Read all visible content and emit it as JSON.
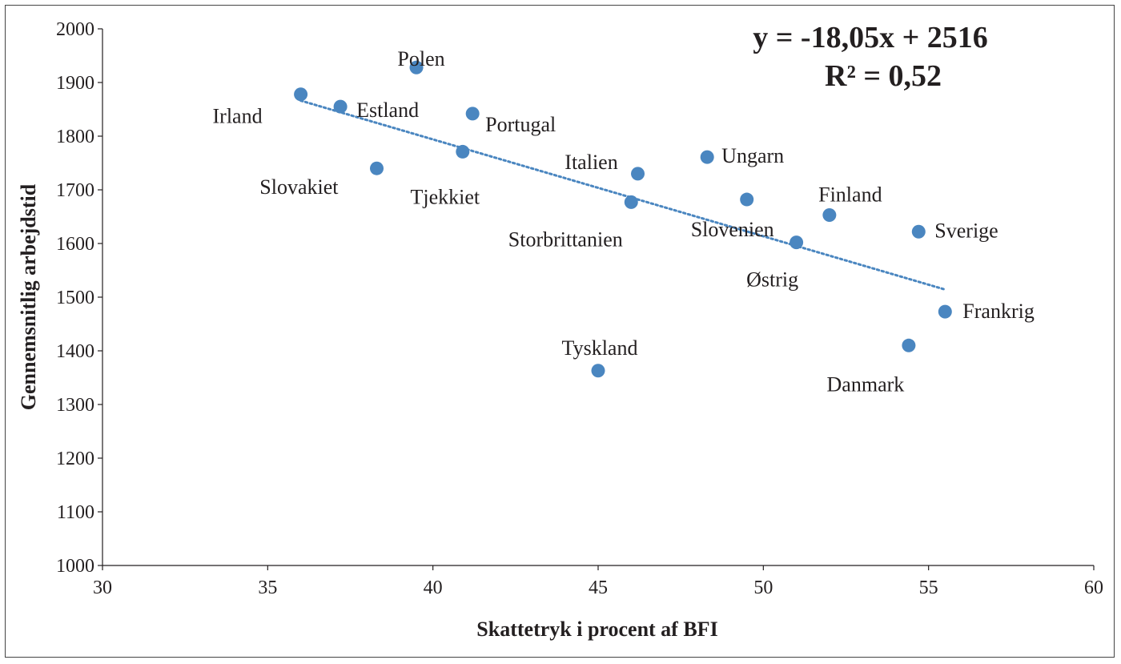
{
  "chart_data": {
    "type": "scatter",
    "title": "",
    "xlabel": "Skattetryk i procent af BFI",
    "ylabel": "Gennemsnitlig arbejdstid",
    "xlim": [
      30,
      60
    ],
    "ylim": [
      1000,
      2000
    ],
    "x_ticks": [
      "30",
      "35",
      "40",
      "45",
      "50",
      "55",
      "60"
    ],
    "y_ticks": [
      "1000",
      "1100",
      "1200",
      "1300",
      "1400",
      "1500",
      "1600",
      "1700",
      "1800",
      "1900",
      "2000"
    ],
    "grid": false,
    "legend": "none",
    "marker_color": "#4a86c0",
    "trend_color": "#4a86c0",
    "trendline": {
      "type": "linear",
      "slope": -18.05,
      "intercept": 2516,
      "x_range": [
        36,
        55.5
      ],
      "equation_label": "y = -18,05x + 2516",
      "r2_label": "R² = 0,52"
    },
    "points": [
      {
        "label": "Irland",
        "x": 36.0,
        "y": 1878
      },
      {
        "label": "Estland",
        "x": 37.2,
        "y": 1855
      },
      {
        "label": "Polen",
        "x": 39.5,
        "y": 1928
      },
      {
        "label": "Slovakiet",
        "x": 38.3,
        "y": 1740
      },
      {
        "label": "Tjekkiet",
        "x": 40.9,
        "y": 1771
      },
      {
        "label": "Portugal",
        "x": 41.2,
        "y": 1842
      },
      {
        "label": "Italien",
        "x": 46.2,
        "y": 1730
      },
      {
        "label": "Storbrittanien",
        "x": 46.0,
        "y": 1677
      },
      {
        "label": "Tyskland",
        "x": 45.0,
        "y": 1363
      },
      {
        "label": "Ungarn",
        "x": 48.3,
        "y": 1761
      },
      {
        "label": "Slovenien",
        "x": 49.5,
        "y": 1682
      },
      {
        "label": "Østrig",
        "x": 51.0,
        "y": 1602
      },
      {
        "label": "Finland",
        "x": 52.0,
        "y": 1653
      },
      {
        "label": "Sverige",
        "x": 54.7,
        "y": 1622
      },
      {
        "label": "Danmark",
        "x": 54.4,
        "y": 1410
      },
      {
        "label": "Frankrig",
        "x": 55.5,
        "y": 1473
      }
    ]
  }
}
